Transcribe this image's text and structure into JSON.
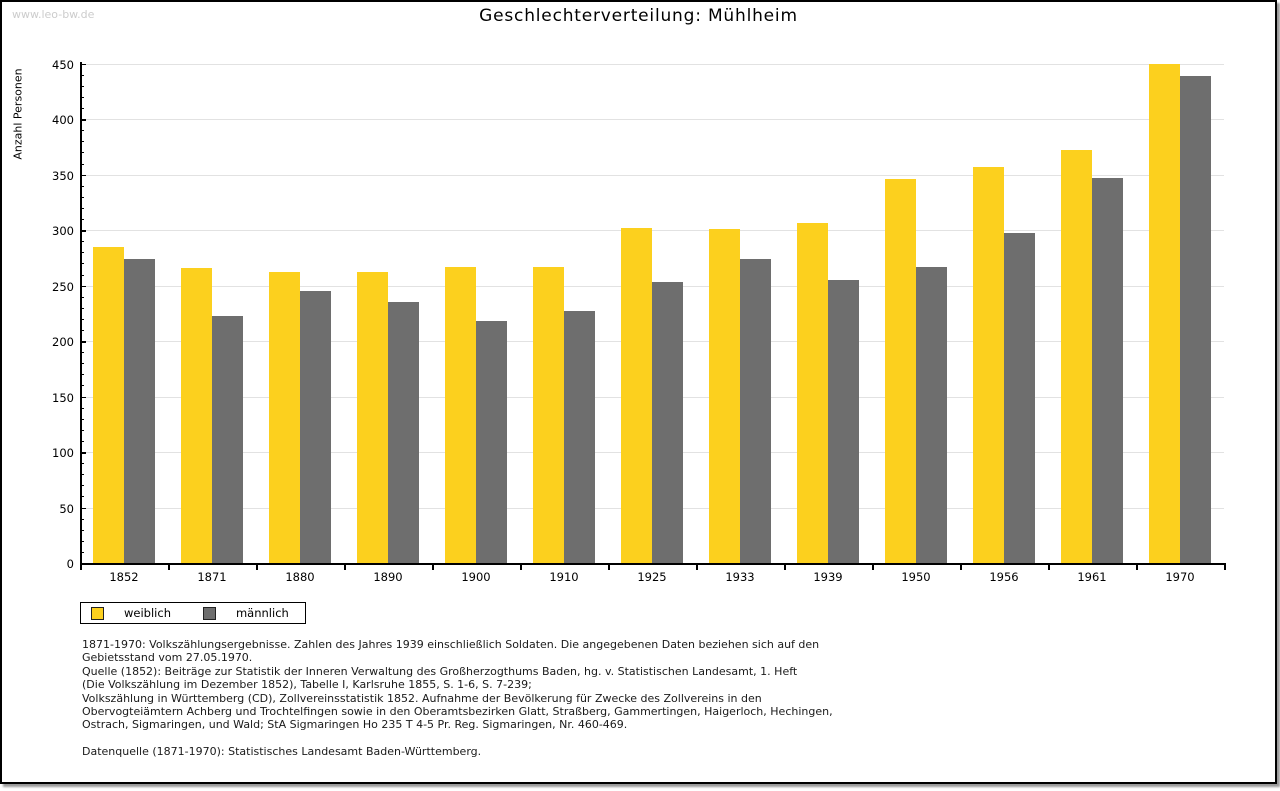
{
  "watermark": "www.leo-bw.de",
  "chart_data": {
    "type": "bar",
    "title": "Geschlechterverteilung: Mühlheim",
    "xlabel": "",
    "ylabel": "Anzahl Personen",
    "categories": [
      "1852",
      "1871",
      "1880",
      "1890",
      "1900",
      "1910",
      "1925",
      "1933",
      "1939",
      "1950",
      "1956",
      "1961",
      "1970"
    ],
    "series": [
      {
        "name": "weiblich",
        "color": "#FCD01E",
        "values": [
          285,
          266,
          262,
          262,
          267,
          267,
          302,
          301,
          306,
          346,
          357,
          372,
          450
        ]
      },
      {
        "name": "männlich",
        "color": "#6E6E6E",
        "values": [
          274,
          223,
          245,
          235,
          218,
          227,
          253,
          274,
          255,
          267,
          297,
          347,
          439
        ]
      }
    ],
    "ylim": [
      0,
      450
    ],
    "ytick_step": 50,
    "minor_tick_step": 10,
    "grid": true,
    "gridline_color": "#e2e2e2",
    "legend_position": "bottom-left"
  },
  "footer": {
    "lines": [
      "1871-1970: Volkszählungsergebnisse. Zahlen des Jahres 1939 einschließlich Soldaten. Die angegebenen Daten beziehen sich auf den",
      "Gebietsstand vom 27.05.1970.",
      "Quelle (1852): Beiträge zur Statistik der Inneren Verwaltung des Großherzogthums Baden, hg. v. Statistischen Landesamt, 1. Heft",
      "(Die Volkszählung im Dezember 1852), Tabelle I, Karlsruhe 1855, S. 1-6, S. 7-239;",
      "Volkszählung in Württemberg (CD), Zollvereinsstatistik 1852. Aufnahme der Bevölkerung für Zwecke des Zollvereins in den",
      "Obervogteiämtern Achberg und Trochtelfingen sowie in den Oberamtsbezirken Glatt, Straßberg, Gammertingen, Haigerloch, Hechingen,",
      "Ostrach, Sigmaringen, und Wald; StA Sigmaringen Ho 235 T 4-5 Pr. Reg. Sigmaringen, Nr. 460-469."
    ],
    "datasource": "Datenquelle (1871-1970): Statistisches Landesamt Baden-Württemberg."
  }
}
